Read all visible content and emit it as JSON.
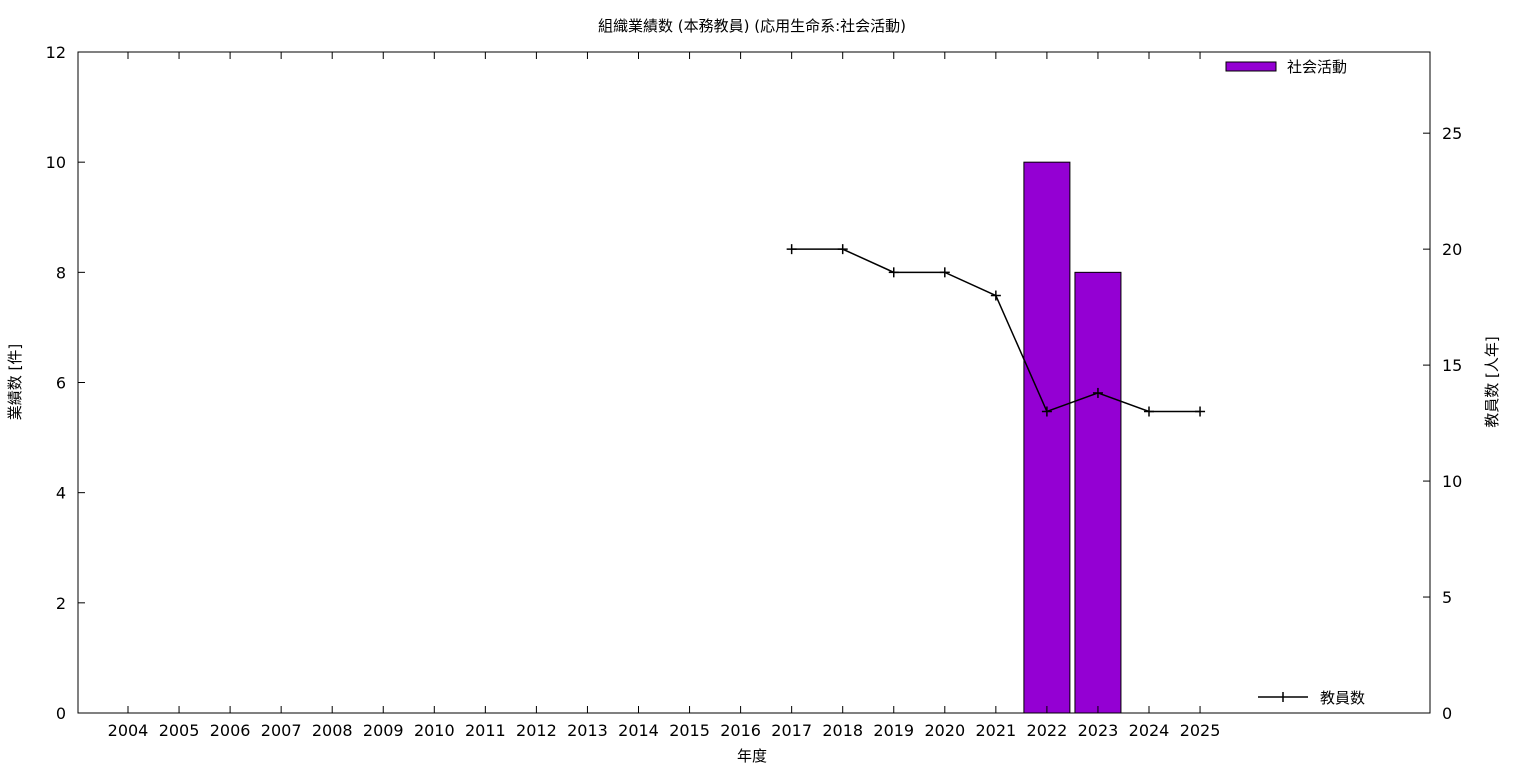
{
  "chart_data": {
    "type": "bar",
    "title": "組織業績数 (本務教員) (応用生命系:社会活動)",
    "xlabel": "年度",
    "ylabel": "業績数 [件]",
    "y2label": "教員数 [人年]",
    "categories": [
      "2004",
      "2005",
      "2006",
      "2007",
      "2008",
      "2009",
      "2010",
      "2011",
      "2012",
      "2013",
      "2014",
      "2015",
      "2016",
      "2017",
      "2018",
      "2019",
      "2020",
      "2021",
      "2022",
      "2023",
      "2024",
      "2025"
    ],
    "ylim": [
      0,
      12
    ],
    "y2lim": [
      0,
      28.5
    ],
    "yticks": [
      0,
      2,
      4,
      6,
      8,
      10,
      12
    ],
    "y2ticks": [
      0,
      5,
      10,
      15,
      20,
      25
    ],
    "grid": false,
    "series": [
      {
        "name": "社会活動",
        "type": "bar",
        "axis": "left",
        "color": "#9400d3",
        "values": [
          null,
          null,
          null,
          null,
          null,
          null,
          null,
          null,
          null,
          null,
          null,
          null,
          null,
          null,
          null,
          null,
          null,
          null,
          10,
          8,
          null,
          null
        ]
      },
      {
        "name": "教員数",
        "type": "line",
        "axis": "right",
        "color": "#000000",
        "values": [
          null,
          null,
          null,
          null,
          null,
          null,
          null,
          null,
          null,
          null,
          null,
          null,
          null,
          20,
          20,
          19,
          19,
          18,
          13,
          13.8,
          13,
          13
        ]
      }
    ],
    "legend_placement": [
      "top-right",
      "bottom-right"
    ]
  }
}
